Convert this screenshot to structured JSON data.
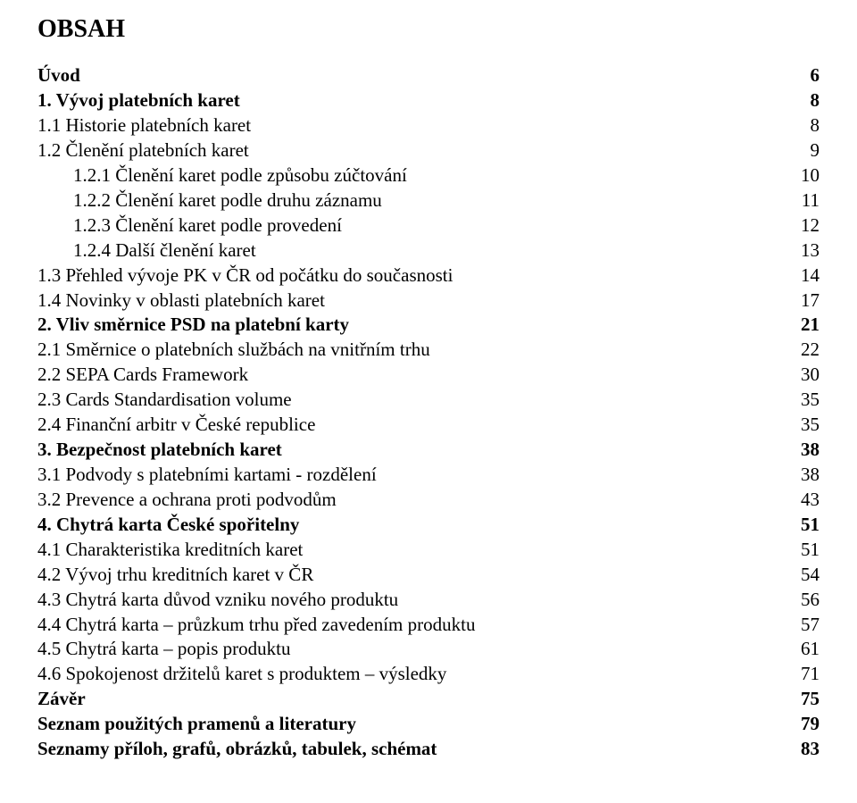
{
  "title": "OBSAH",
  "entries": [
    {
      "label": "Úvod",
      "page": "6",
      "level": 0,
      "bold": true
    },
    {
      "label": "1. Vývoj platebních karet",
      "page": "8",
      "level": 0,
      "bold": true
    },
    {
      "label": "1.1 Historie platebních karet",
      "page": "8",
      "level": 1,
      "bold": false
    },
    {
      "label": "1.2 Členění platebních karet",
      "page": "9",
      "level": 1,
      "bold": false
    },
    {
      "label": "1.2.1 Členění karet podle způsobu zúčtování",
      "page": "10",
      "level": 2,
      "bold": false
    },
    {
      "label": "1.2.2 Členění karet podle druhu záznamu",
      "page": "11",
      "level": 2,
      "bold": false
    },
    {
      "label": "1.2.3 Členění karet podle provedení",
      "page": "12",
      "level": 2,
      "bold": false
    },
    {
      "label": "1.2.4 Další členění karet",
      "page": "13",
      "level": 2,
      "bold": false
    },
    {
      "label": "1.3 Přehled vývoje PK v ČR od počátku do současnosti",
      "page": "14",
      "level": 1,
      "bold": false
    },
    {
      "label": "1.4 Novinky v oblasti platebních karet",
      "page": "17",
      "level": 1,
      "bold": false
    },
    {
      "label": "2. Vliv směrnice PSD na platební karty",
      "page": "21",
      "level": 0,
      "bold": true
    },
    {
      "label": "2.1 Směrnice o platebních službách na vnitřním trhu",
      "page": "22",
      "level": 1,
      "bold": false
    },
    {
      "label": "2.2 SEPA Cards Framework",
      "page": "30",
      "level": 1,
      "bold": false
    },
    {
      "label": "2.3 Cards Standardisation volume",
      "page": "35",
      "level": 1,
      "bold": false
    },
    {
      "label": "2.4 Finanční arbitr v České republice",
      "page": "35",
      "level": 1,
      "bold": false
    },
    {
      "label": "3. Bezpečnost platebních karet",
      "page": "38",
      "level": 0,
      "bold": true
    },
    {
      "label": "3.1 Podvody s platebními kartami - rozdělení",
      "page": "38",
      "level": 1,
      "bold": false
    },
    {
      "label": "3.2 Prevence a ochrana proti podvodům",
      "page": "43",
      "level": 1,
      "bold": false
    },
    {
      "label": "4. Chytrá karta České spořitelny",
      "page": "51",
      "level": 0,
      "bold": true
    },
    {
      "label": "4.1 Charakteristika kreditních karet",
      "page": "51",
      "level": 1,
      "bold": false
    },
    {
      "label": "4.2 Vývoj trhu kreditních karet v ČR",
      "page": "54",
      "level": 1,
      "bold": false
    },
    {
      "label": "4.3 Chytrá karta důvod vzniku nového produktu",
      "page": "56",
      "level": 1,
      "bold": false
    },
    {
      "label": "4.4 Chytrá karta – průzkum trhu před zavedením produktu",
      "page": "57",
      "level": 1,
      "bold": false
    },
    {
      "label": "4.5 Chytrá karta – popis produktu",
      "page": "61",
      "level": 1,
      "bold": false
    },
    {
      "label": "4.6 Spokojenost držitelů karet s produktem – výsledky",
      "page": "71",
      "level": 1,
      "bold": false
    },
    {
      "label": "Závěr",
      "page": "75",
      "level": 0,
      "bold": true
    },
    {
      "label": "Seznam použitých pramenů a literatury",
      "page": "79",
      "level": 0,
      "bold": true
    },
    {
      "label": "Seznamy příloh, grafů, obrázků, tabulek, schémat",
      "page": "83",
      "level": 0,
      "bold": true
    }
  ]
}
